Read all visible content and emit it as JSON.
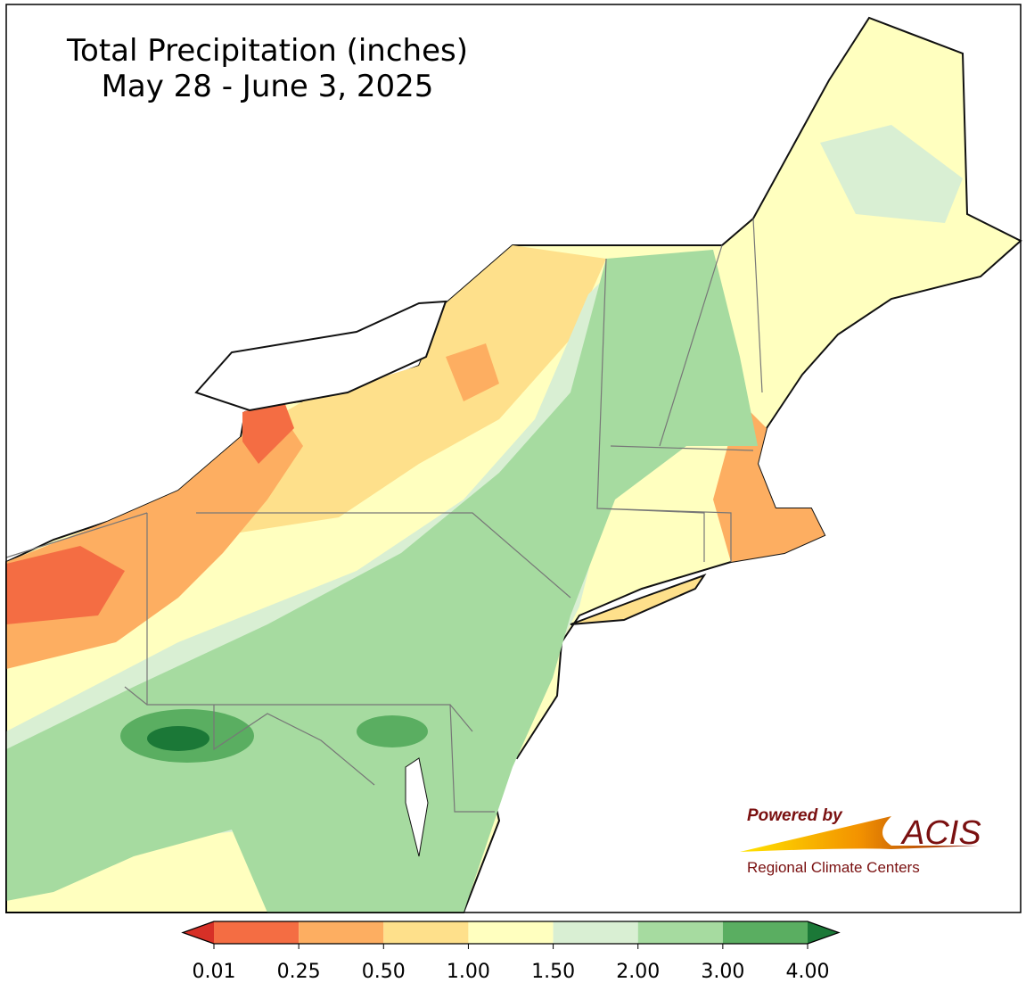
{
  "title": [
    "Total Precipitation (inches)",
    "May 28 - June 3, 2025"
  ],
  "legend": {
    "ticks": [
      {
        "value": 0.01,
        "label": "0.01"
      },
      {
        "value": 0.25,
        "label": "0.25"
      },
      {
        "value": 0.5,
        "label": "0.50"
      },
      {
        "value": 1,
        "label": "1.00"
      },
      {
        "value": 1.5,
        "label": "1.50"
      },
      {
        "value": 2,
        "label": "2.00"
      },
      {
        "value": 3,
        "label": "3.00"
      },
      {
        "value": 4,
        "label": "4.00"
      }
    ],
    "under_color": "#d73027",
    "colors": [
      "#f46d43",
      "#fdae61",
      "#fee08b",
      "#ffffbf",
      "#d9efd3",
      "#a6dba0",
      "#5aae61"
    ],
    "over_color": "#1b7837"
  },
  "logo": {
    "powered_by": "Powered by",
    "name": "ACIS",
    "subtitle": "Regional Climate Centers"
  }
}
